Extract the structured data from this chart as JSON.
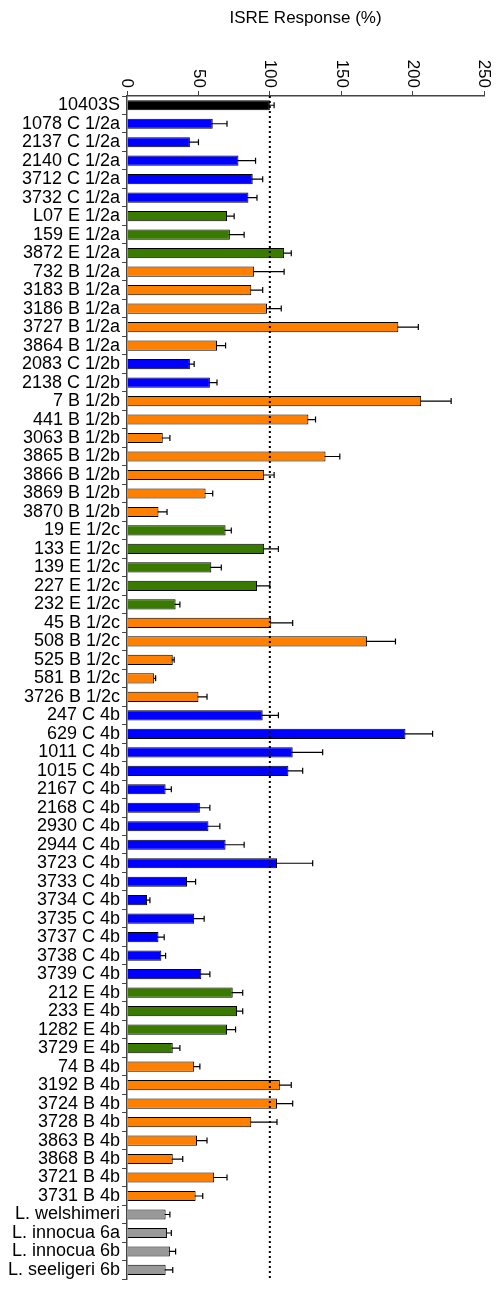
{
  "chart_data": {
    "type": "bar",
    "orientation": "horizontal",
    "xlabel": "ISRE Response (%)",
    "categories": [
      "10403S",
      "1078 C 1/2a",
      "2137 C 1/2a",
      "2140 C 1/2a",
      "3712 C 1/2a",
      "3732 C 1/2a",
      "L07 E 1/2a",
      "159 E 1/2a",
      "3872 E 1/2a",
      "732 B 1/2a",
      "3183 B 1/2a",
      "3186 B 1/2a",
      "3727 B 1/2a",
      "3864 B 1/2a",
      "2083 C 1/2b",
      "2138 C 1/2b",
      "7 B 1/2b",
      "441 B 1/2b",
      "3063 B 1/2b",
      "3865 B 1/2b",
      "3866 B 1/2b",
      "3869 B 1/2b",
      "3870 B 1/2b",
      "19 E 1/2c",
      "133 E 1/2c",
      "139 E 1/2c",
      "227 E 1/2c",
      "232 E 1/2c",
      "45 B 1/2c",
      "508 B 1/2c",
      "525 B 1/2c",
      "581 B 1/2c",
      "3726 B 1/2c",
      "247 C 4b",
      "629 C 4b",
      "1011 C 4b",
      "1015 C 4b",
      "2167 C 4b",
      "2168 C 4b",
      "2930 C 4b",
      "2944 C 4b",
      "3723 C 4b",
      "3733 C 4b",
      "3734 C 4b",
      "3735 C 4b",
      "3737 C 4b",
      "3738 C 4b",
      "3739 C 4b",
      "212 E 4b",
      "233 E 4b",
      "1282 E 4b",
      "3729 E 4b",
      "74 B 4b",
      "3192 B 4b",
      "3724 B 4b",
      "3728 B 4b",
      "3863 B 4b",
      "3868 B 4b",
      "3721 B 4b",
      "3731 B 4b",
      "L. welshimeri",
      "L. innocua 6a",
      "L. innocua 6b",
      "L. seeligeri 6b"
    ],
    "values": [
      100,
      60,
      44,
      78,
      88,
      85,
      70,
      72,
      110,
      89,
      87,
      98,
      190,
      63,
      44,
      58,
      206,
      127,
      25,
      139,
      96,
      55,
      22,
      69,
      96,
      59,
      91,
      34,
      101,
      168,
      32,
      19,
      50,
      95,
      195,
      116,
      113,
      27,
      51,
      57,
      69,
      105,
      42,
      14,
      47,
      22,
      24,
      52,
      74,
      77,
      70,
      32,
      47,
      107,
      105,
      87,
      49,
      32,
      61,
      48,
      27,
      28,
      30,
      27
    ],
    "errors": [
      3,
      10,
      6,
      12,
      7,
      6,
      5,
      10,
      5,
      21,
      8,
      10,
      14,
      6,
      3,
      5,
      21,
      5,
      5,
      10,
      7,
      5,
      6,
      4,
      10,
      7,
      9,
      3,
      15,
      20,
      1,
      1,
      6,
      11,
      19,
      21,
      10,
      4,
      7,
      8,
      13,
      25,
      6,
      2,
      7,
      4,
      3,
      6,
      7,
      4,
      6,
      5,
      4,
      8,
      11,
      18,
      7,
      7,
      9,
      5,
      3,
      3,
      4,
      5
    ],
    "colors": [
      "#000000",
      "#0000ff",
      "#0000ff",
      "#0000ff",
      "#0000ff",
      "#0000ff",
      "#3a7a00",
      "#3a7a00",
      "#3a7a00",
      "#ff8000",
      "#ff8000",
      "#ff8000",
      "#ff8000",
      "#ff8000",
      "#0000ff",
      "#0000ff",
      "#ff8000",
      "#ff8000",
      "#ff8000",
      "#ff8000",
      "#ff8000",
      "#ff8000",
      "#ff8000",
      "#3a7a00",
      "#3a7a00",
      "#3a7a00",
      "#3a7a00",
      "#3a7a00",
      "#ff8000",
      "#ff8000",
      "#ff8000",
      "#ff8000",
      "#ff8000",
      "#0000ff",
      "#0000ff",
      "#0000ff",
      "#0000ff",
      "#0000ff",
      "#0000ff",
      "#0000ff",
      "#0000ff",
      "#0000ff",
      "#0000ff",
      "#0000ff",
      "#0000ff",
      "#0000ff",
      "#0000ff",
      "#0000ff",
      "#3a7a00",
      "#3a7a00",
      "#3a7a00",
      "#3a7a00",
      "#ff8000",
      "#ff8000",
      "#ff8000",
      "#ff8000",
      "#ff8000",
      "#ff8000",
      "#ff8000",
      "#ff8000",
      "#999999",
      "#999999",
      "#999999",
      "#999999"
    ],
    "xlim": [
      0,
      250
    ],
    "xticks": [
      0,
      50,
      100,
      150,
      200,
      250
    ],
    "ref_lines": [
      {
        "axis": "x",
        "value": 100,
        "color": "#000000",
        "line_style": "dotted"
      }
    ],
    "grid": false,
    "legend": false
  }
}
